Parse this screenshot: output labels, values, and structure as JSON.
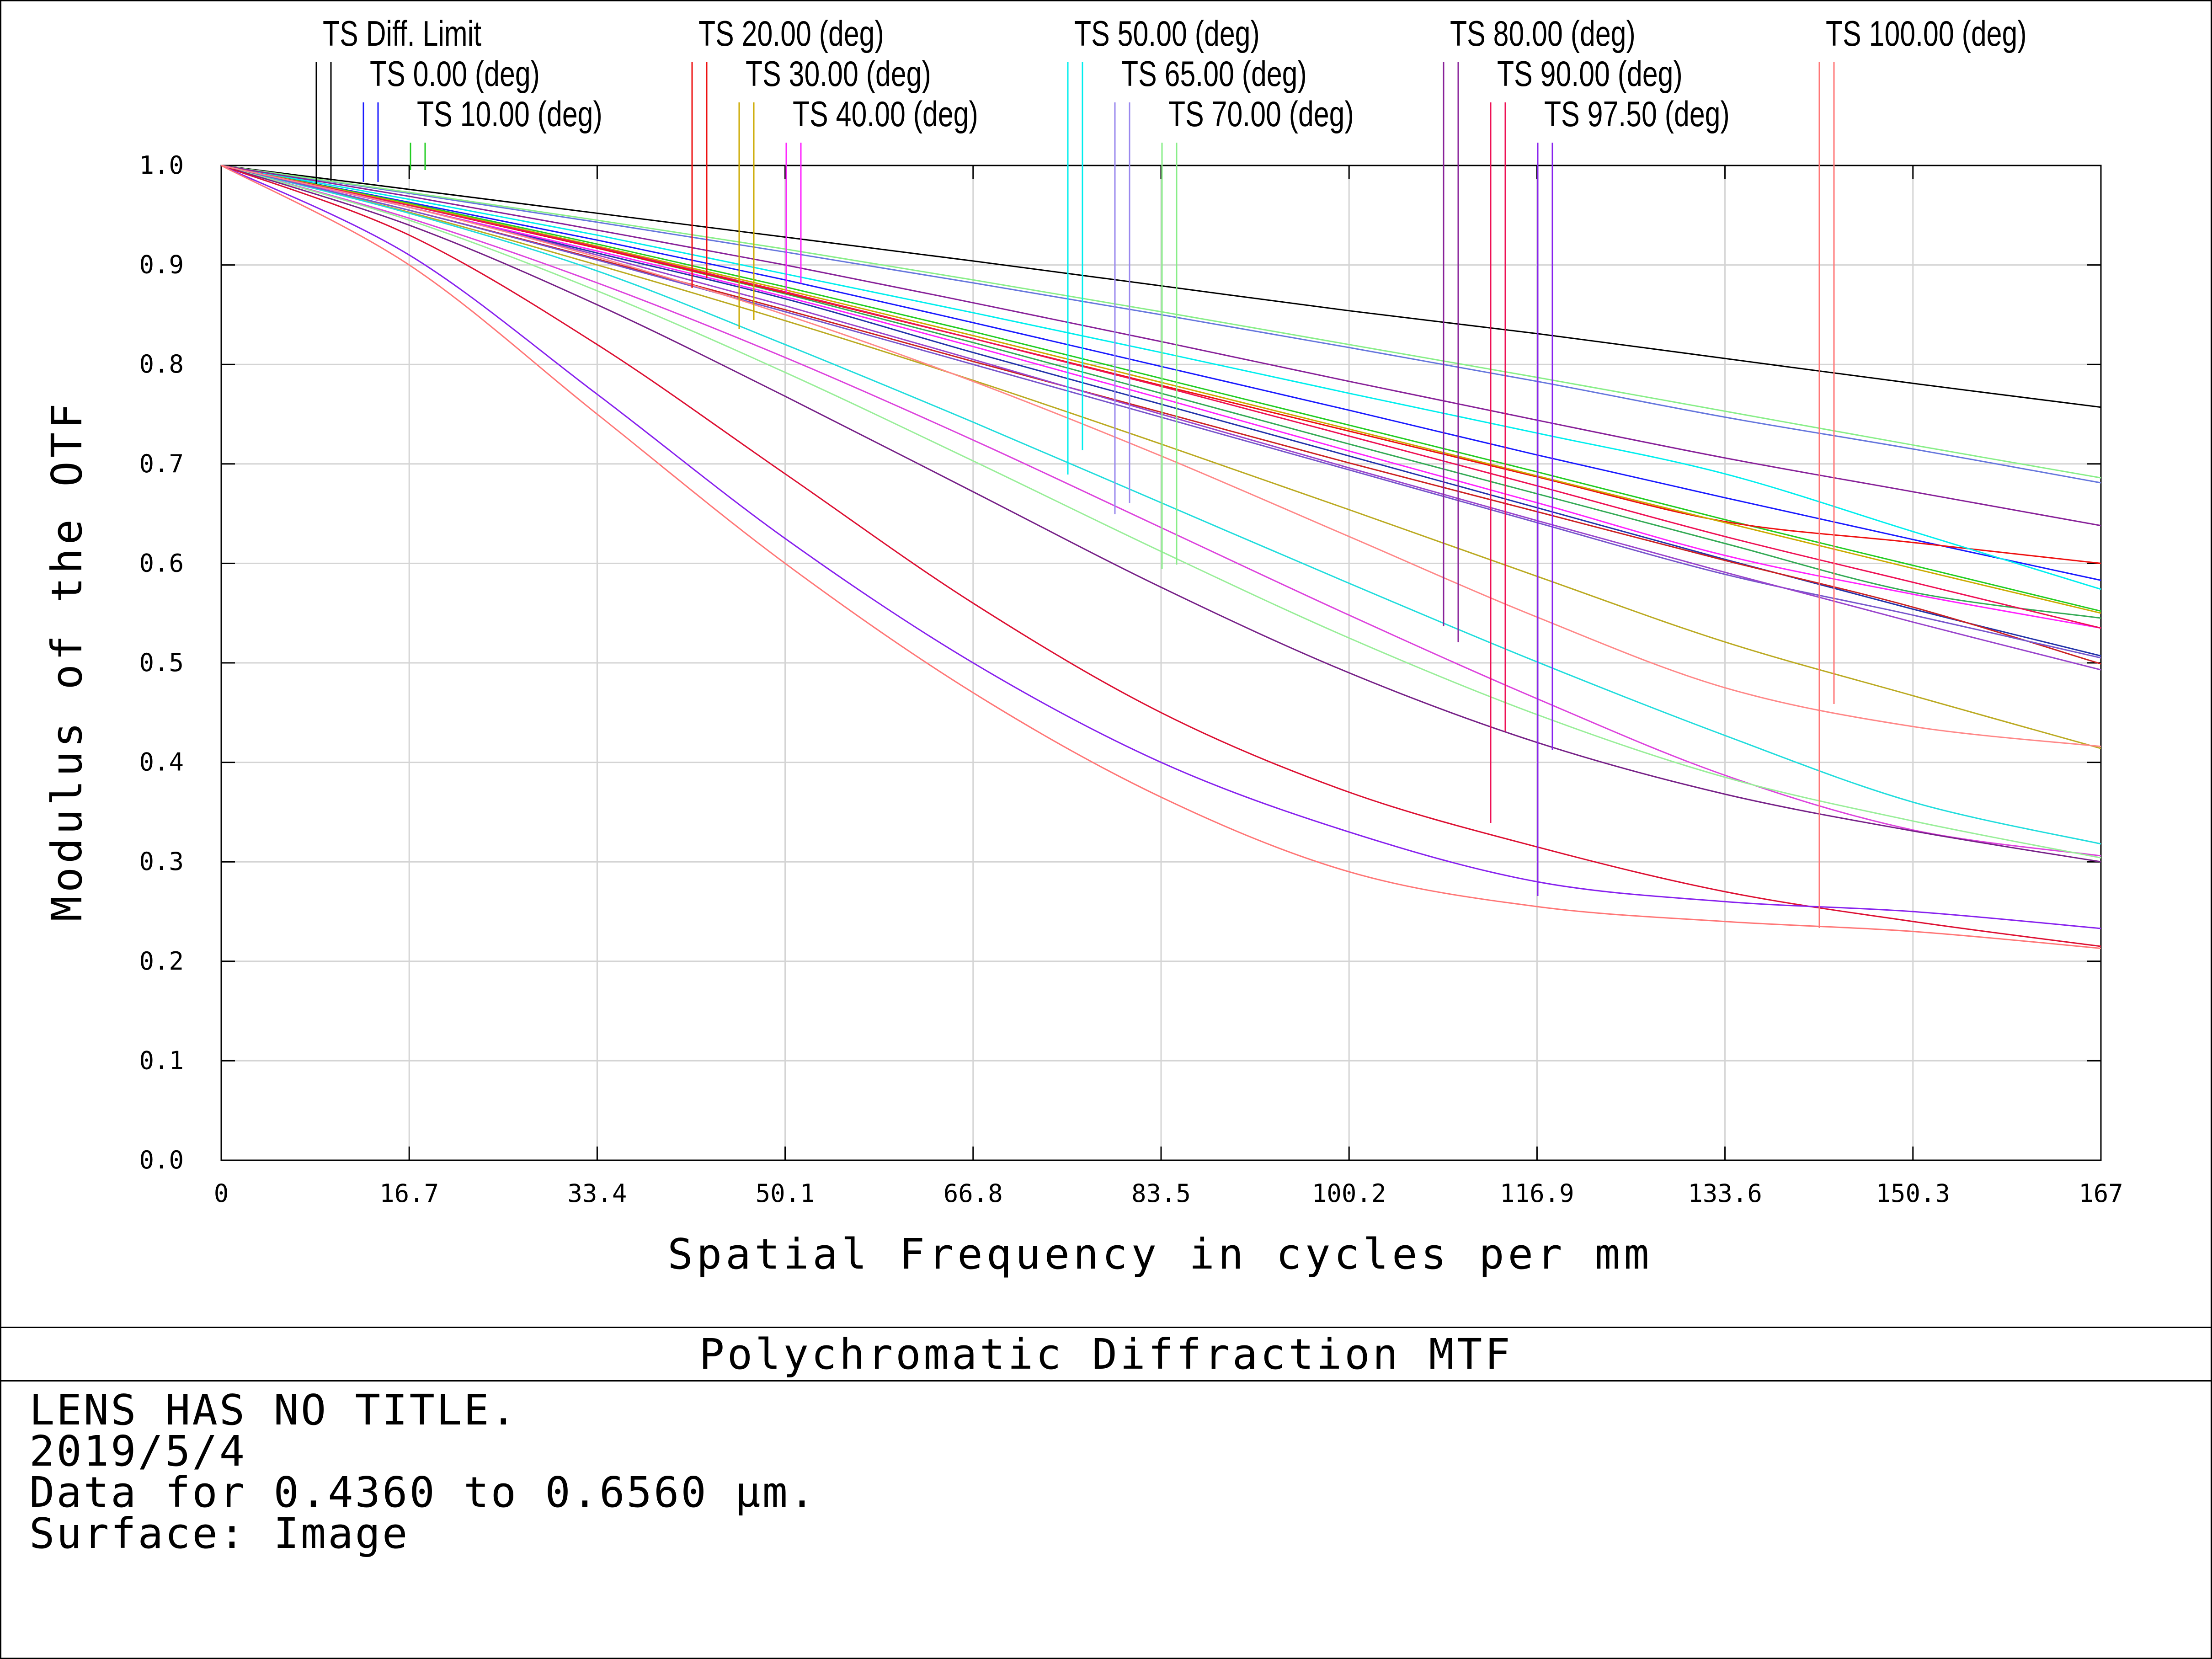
{
  "chart_data": {
    "type": "line",
    "title": "Polychromatic Diffraction MTF",
    "xlabel": "Spatial Frequency in cycles per mm",
    "ylabel": "Modulus of the OTF",
    "xlim": [
      0,
      167
    ],
    "ylim": [
      0,
      1.0
    ],
    "xticks": [
      "0",
      "16.7",
      "33.4",
      "50.1",
      "66.8",
      "83.5",
      "100.2",
      "116.9",
      "133.6",
      "150.3",
      "167"
    ],
    "yticks": [
      "0.0",
      "0.1",
      "0.2",
      "0.3",
      "0.4",
      "0.5",
      "0.6",
      "0.7",
      "0.8",
      "0.9",
      "1.0"
    ],
    "grid": true,
    "x": [
      0,
      16.7,
      33.4,
      50.1,
      66.8,
      83.5,
      100.2,
      116.9,
      133.6,
      150.3,
      167
    ],
    "legend": [
      {
        "label": "TS Diff. Limit",
        "color": "#000000"
      },
      {
        "label": "TS 0.00 (deg)",
        "color": "#1a1aff"
      },
      {
        "label": "TS 10.00 (deg)",
        "color": "#22cc22"
      },
      {
        "label": "TS 20.00 (deg)",
        "color": "#ee1111"
      },
      {
        "label": "TS 30.00 (deg)",
        "color": "#ccaa00"
      },
      {
        "label": "TS 40.00 (deg)",
        "color": "#ff22ff"
      },
      {
        "label": "TS 50.00 (deg)",
        "color": "#00eeee"
      },
      {
        "label": "TS 65.00 (deg)",
        "color": "#9988ee"
      },
      {
        "label": "TS 70.00 (deg)",
        "color": "#88ee88"
      },
      {
        "label": "TS 80.00 (deg)",
        "color": "#882299"
      },
      {
        "label": "TS 90.00 (deg)",
        "color": "#ee1155"
      },
      {
        "label": "TS 97.50 (deg)",
        "color": "#8822ee"
      },
      {
        "label": "TS 100.00 (deg)",
        "color": "#ff7777"
      }
    ],
    "series": [
      {
        "name": "TS Diff. Limit",
        "color": "#000000",
        "values": [
          1.0,
          0.976,
          0.952,
          0.928,
          0.904,
          0.879,
          0.854,
          0.831,
          0.806,
          0.781,
          0.757
        ]
      },
      {
        "name": "TS 0.00 (deg) T",
        "color": "#1a1aff",
        "values": [
          1.0,
          0.963,
          0.925,
          0.885,
          0.842,
          0.798,
          0.754,
          0.709,
          0.666,
          0.624,
          0.583
        ]
      },
      {
        "name": "TS 0.00 (deg) S",
        "color": "#2233aa",
        "values": [
          1.0,
          0.958,
          0.912,
          0.866,
          0.812,
          0.76,
          0.708,
          0.656,
          0.604,
          0.554,
          0.507
        ]
      },
      {
        "name": "TS 10.00 (deg) T",
        "color": "#22cc22",
        "values": [
          1.0,
          0.962,
          0.921,
          0.878,
          0.833,
          0.786,
          0.739,
          0.692,
          0.644,
          0.598,
          0.552
        ]
      },
      {
        "name": "TS 10.00 (deg) S",
        "color": "#33aa55",
        "values": [
          1.0,
          0.96,
          0.917,
          0.871,
          0.822,
          0.771,
          0.72,
          0.67,
          0.62,
          0.571,
          0.545
        ]
      },
      {
        "name": "TS 20.00 (deg) T",
        "color": "#ee1111",
        "values": [
          1.0,
          0.96,
          0.917,
          0.872,
          0.826,
          0.779,
          0.733,
          0.687,
          0.642,
          0.621,
          0.6
        ]
      },
      {
        "name": "TS 20.00 (deg) S",
        "color": "#cc2222",
        "values": [
          1.0,
          0.955,
          0.906,
          0.855,
          0.803,
          0.752,
          0.701,
          0.652,
          0.603,
          0.556,
          0.499
        ]
      },
      {
        "name": "TS 30.00 (deg) T",
        "color": "#ccaa00",
        "values": [
          1.0,
          0.961,
          0.919,
          0.875,
          0.829,
          0.782,
          0.735,
          0.688,
          0.641,
          0.595,
          0.55
        ]
      },
      {
        "name": "TS 30.00 (deg) S",
        "color": "#bbaa22",
        "values": [
          1.0,
          0.953,
          0.9,
          0.844,
          0.784,
          0.72,
          0.654,
          0.587,
          0.521,
          0.467,
          0.414
        ]
      },
      {
        "name": "TS 40.00 (deg) T",
        "color": "#ff22ff",
        "values": [
          1.0,
          0.958,
          0.914,
          0.868,
          0.818,
          0.766,
          0.713,
          0.661,
          0.608,
          0.569,
          0.535
        ]
      },
      {
        "name": "TS 40.00 (deg) S",
        "color": "#dd44dd",
        "values": [
          1.0,
          0.947,
          0.882,
          0.807,
          0.724,
          0.636,
          0.548,
          0.464,
          0.387,
          0.332,
          0.306
        ]
      },
      {
        "name": "TS 50.00 (deg) T",
        "color": "#00eeee",
        "values": [
          1.0,
          0.966,
          0.93,
          0.891,
          0.852,
          0.812,
          0.771,
          0.731,
          0.69,
          0.632,
          0.574
        ]
      },
      {
        "name": "TS 50.00 (deg) S",
        "color": "#22dddd",
        "values": [
          1.0,
          0.952,
          0.894,
          0.82,
          0.742,
          0.661,
          0.58,
          0.501,
          0.427,
          0.36,
          0.318
        ]
      },
      {
        "name": "TS 65.00 (deg) T",
        "color": "#6677dd",
        "values": [
          1.0,
          0.972,
          0.943,
          0.913,
          0.882,
          0.85,
          0.817,
          0.783,
          0.747,
          0.715,
          0.681
        ]
      },
      {
        "name": "TS 65.00 (deg) S",
        "color": "#7755cc",
        "values": [
          1.0,
          0.955,
          0.905,
          0.853,
          0.8,
          0.747,
          0.694,
          0.641,
          0.589,
          0.548,
          0.505
        ]
      },
      {
        "name": "TS 70.00 (deg) T",
        "color": "#88ee88",
        "values": [
          1.0,
          0.973,
          0.945,
          0.916,
          0.885,
          0.853,
          0.82,
          0.787,
          0.753,
          0.719,
          0.686
        ]
      },
      {
        "name": "TS 70.00 (deg) S",
        "color": "#99ee99",
        "values": [
          1.0,
          0.945,
          0.874,
          0.792,
          0.703,
          0.612,
          0.525,
          0.448,
          0.385,
          0.341,
          0.304
        ]
      },
      {
        "name": "TS 80.00 (deg) T",
        "color": "#882299",
        "values": [
          1.0,
          0.969,
          0.935,
          0.9,
          0.862,
          0.823,
          0.783,
          0.744,
          0.706,
          0.672,
          0.638
        ]
      },
      {
        "name": "TS 80.00 (deg) S",
        "color": "#772288",
        "values": [
          1.0,
          0.94,
          0.86,
          0.768,
          0.672,
          0.576,
          0.49,
          0.42,
          0.368,
          0.331,
          0.3
        ]
      },
      {
        "name": "TS 90.00 (deg) T",
        "color": "#ee1155",
        "values": [
          1.0,
          0.96,
          0.918,
          0.873,
          0.826,
          0.778,
          0.728,
          0.678,
          0.627,
          0.581,
          0.535
        ]
      },
      {
        "name": "TS 90.00 (deg) S",
        "color": "#dd1133",
        "values": [
          1.0,
          0.93,
          0.82,
          0.69,
          0.56,
          0.45,
          0.37,
          0.315,
          0.27,
          0.24,
          0.215
        ]
      },
      {
        "name": "TS 97.50 (deg) T",
        "color": "#9944cc",
        "values": [
          1.0,
          0.958,
          0.91,
          0.859,
          0.805,
          0.75,
          0.696,
          0.643,
          0.591,
          0.541,
          0.493
        ]
      },
      {
        "name": "TS 97.50 (deg) S",
        "color": "#8822ee",
        "values": [
          1.0,
          0.91,
          0.77,
          0.625,
          0.5,
          0.4,
          0.33,
          0.28,
          0.26,
          0.25,
          0.233
        ]
      },
      {
        "name": "TS 100.00 (deg) T",
        "color": "#ff8888",
        "values": [
          1.0,
          0.958,
          0.908,
          0.85,
          0.783,
          0.708,
          0.627,
          0.546,
          0.475,
          0.436,
          0.416
        ]
      },
      {
        "name": "TS 100.00 (deg) S",
        "color": "#ff7777",
        "values": [
          1.0,
          0.9,
          0.75,
          0.6,
          0.47,
          0.365,
          0.29,
          0.255,
          0.24,
          0.23,
          0.213
        ]
      }
    ]
  },
  "footer": {
    "title": "Polychromatic Diffraction MTF",
    "lines": [
      "LENS HAS NO TITLE.",
      "2019/5/4",
      "Data for 0.4360 to 0.6560 µm.",
      "Surface: Image"
    ]
  }
}
